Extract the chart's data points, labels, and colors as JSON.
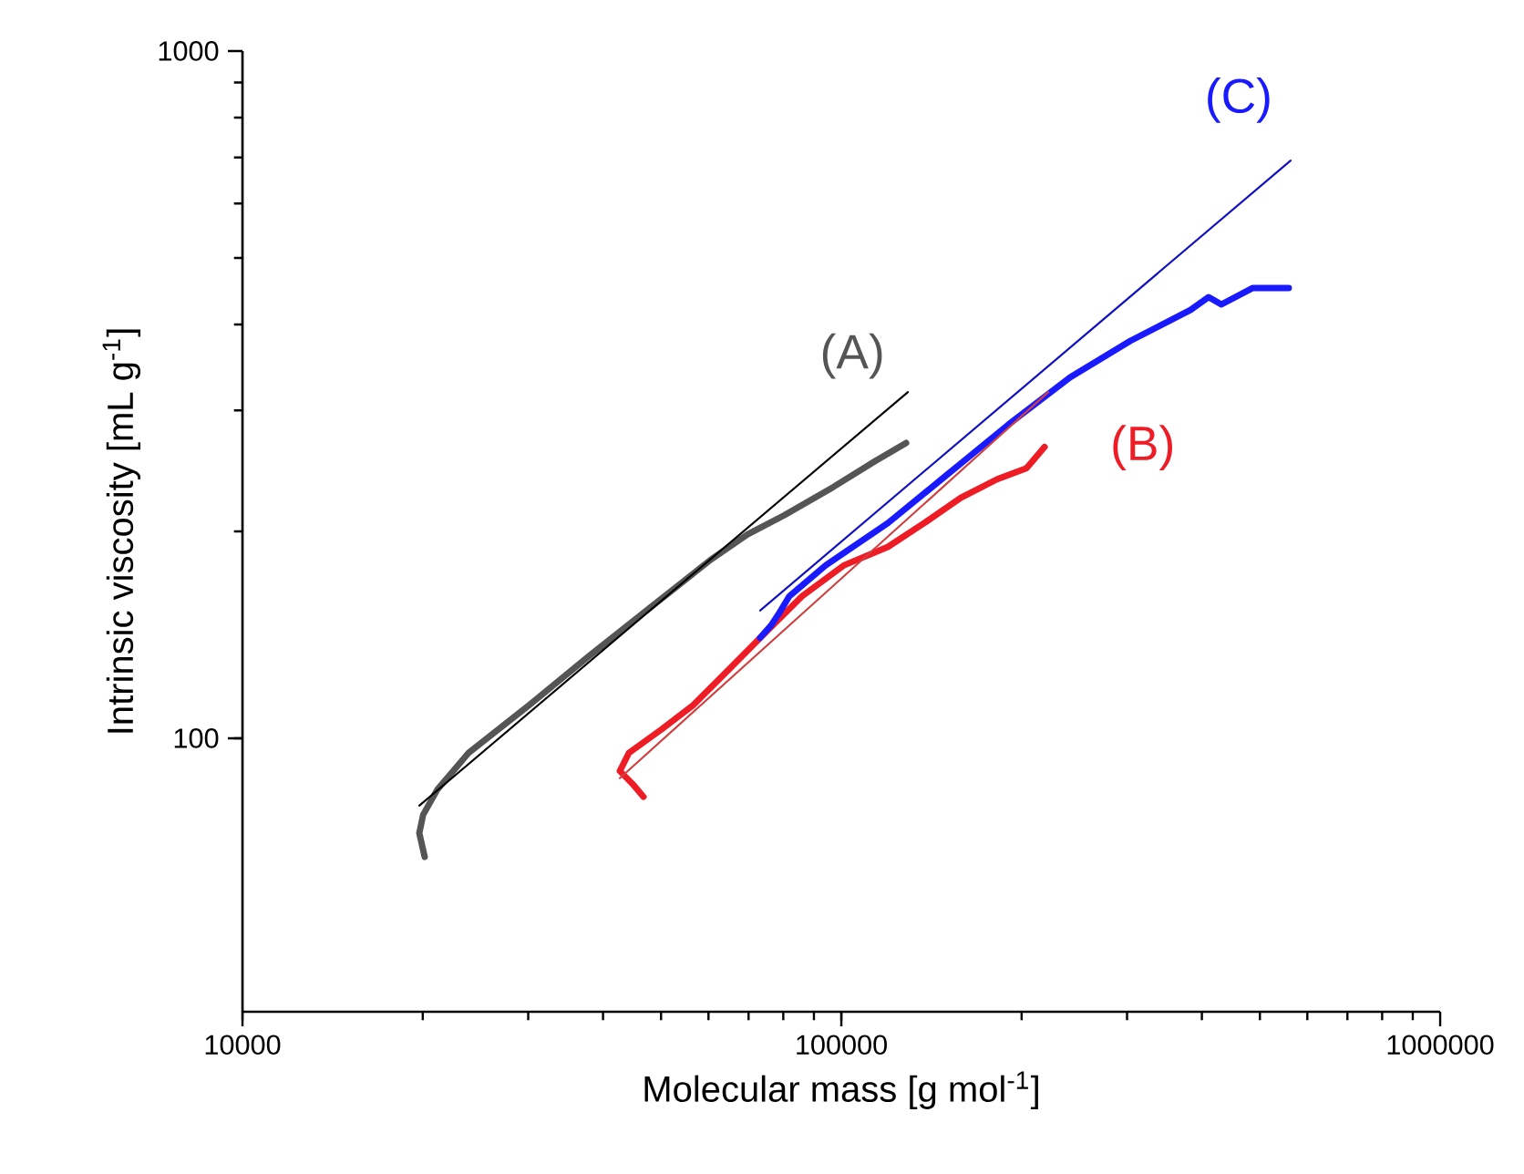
{
  "chart_data": {
    "type": "line",
    "xlabel": "Molecular mass [g mol$^{-1}$]",
    "ylabel": "Intrinsic viscosity [mL g$^{-1}$]",
    "log": "xy",
    "xlim": [
      10000,
      1000000
    ],
    "ylim": [
      40,
      1000
    ],
    "xticks": [
      10000,
      100000,
      1000000
    ],
    "yticks": [
      100,
      1000
    ],
    "grid": false,
    "legend": false,
    "marker": "none",
    "line_style": "solid",
    "series": [
      {
        "color": "#555555",
        "x": [
          20150,
          19740,
          20030,
          21170,
          23850,
          30060,
          37870,
          48080,
          60580,
          69690,
          80190,
          96900,
          113800,
          128300
        ],
        "values": [
          67.2,
          72.8,
          77.4,
          84.3,
          95.2,
          111.6,
          131.6,
          155.2,
          182,
          198,
          211,
          232,
          253,
          269
        ]
      },
      {
        "color": "#ee1c25",
        "x": [
          46740,
          44810,
          42670,
          44190,
          50140,
          56490,
          65000,
          74770,
          86020,
          101100,
          119600,
          137500,
          158300,
          182100,
          203700,
          218500
        ],
        "values": [
          82.2,
          85.8,
          89.6,
          95.2,
          103.1,
          111.6,
          126.1,
          142.6,
          161.0,
          178.6,
          189.9,
          205.6,
          223.9,
          238.2,
          247.0,
          265.4
        ]
      },
      {
        "color": "#1a1aff",
        "x": [
          73180,
          76340,
          78520,
          81890,
          94210,
          119600,
          150700,
          189900,
          241000,
          303800,
          382800,
          410600,
          431200,
          485800,
          558800
        ],
        "values": [
          140,
          146,
          151.5,
          161,
          178.6,
          205.6,
          242.4,
          285.8,
          335,
          378.7,
          420,
          438.5,
          427.8,
          451.9,
          451.9
        ]
      },
      {
        "name": "(A)",
        "color": "#000000",
        "x": [
          19740,
          129200
        ],
        "values": [
          79.8,
          319
        ]
      },
      {
        "name": "(B)",
        "color": "#d04040",
        "x": [
          42670,
          221600
        ],
        "values": [
          87.5,
          319
        ]
      },
      {
        "name": "(C)",
        "color": "#1010c0",
        "x": [
          73180,
          562800
        ],
        "values": [
          153.4,
          693
        ]
      }
    ]
  }
}
